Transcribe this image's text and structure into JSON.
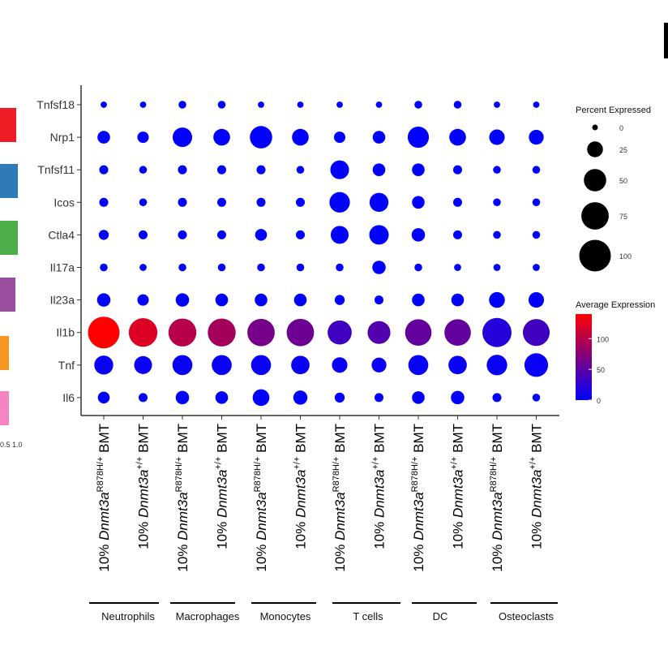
{
  "side_panel": {
    "ticks": "0.5 1.0",
    "bars": [
      {
        "color": "#ee1c25",
        "value": 0.9
      },
      {
        "color": "#2f7bb8",
        "value": 1.0
      },
      {
        "color": "#4caf49",
        "value": 1.0
      },
      {
        "color": "#994f9e",
        "value": 0.85
      },
      {
        "color": "#f5961e",
        "value": 0.5
      },
      {
        "color": "#f683c2",
        "value": 0.5
      }
    ]
  },
  "chart_data": {
    "type": "scatter",
    "genes": [
      "Tnfsf18",
      "Nrp1",
      "Tnfsf11",
      "Icos",
      "Ctla4",
      "Il17a",
      "Il23a",
      "Il1b",
      "Tnf",
      "Il6"
    ],
    "samples": [
      {
        "prefix": "10% ",
        "gene": "Dnmt3a",
        "sup": "R878H/+",
        "suffix": " BMT",
        "group": "Neutrophils"
      },
      {
        "prefix": "10% ",
        "gene": "Dnmt3a",
        "sup": "+/+",
        "suffix": " BMT",
        "group": "Neutrophils"
      },
      {
        "prefix": "10% ",
        "gene": "Dnmt3a",
        "sup": "R878H/+",
        "suffix": " BMT",
        "group": "Macrophages"
      },
      {
        "prefix": "10% ",
        "gene": "Dnmt3a",
        "sup": "+/+",
        "suffix": " BMT",
        "group": "Macrophages"
      },
      {
        "prefix": "10% ",
        "gene": "Dnmt3a",
        "sup": "R878H/+",
        "suffix": " BMT",
        "group": "Monocytes"
      },
      {
        "prefix": "10% ",
        "gene": "Dnmt3a",
        "sup": "+/+",
        "suffix": " BMT",
        "group": "Monocytes"
      },
      {
        "prefix": "10% ",
        "gene": "Dnmt3a",
        "sup": "R878H/+",
        "suffix": " BMT",
        "group": "T cells"
      },
      {
        "prefix": "10% ",
        "gene": "Dnmt3a",
        "sup": "+/+",
        "suffix": " BMT",
        "group": "T cells"
      },
      {
        "prefix": "10% ",
        "gene": "Dnmt3a",
        "sup": "R878H/+",
        "suffix": " BMT",
        "group": "DC"
      },
      {
        "prefix": "10% ",
        "gene": "Dnmt3a",
        "sup": "+/+",
        "suffix": " BMT",
        "group": "DC"
      },
      {
        "prefix": "10% ",
        "gene": "Dnmt3a",
        "sup": "R878H/+",
        "suffix": " BMT",
        "group": "Osteoclasts"
      },
      {
        "prefix": "10% ",
        "gene": "Dnmt3a",
        "sup": "+/+",
        "suffix": " BMT",
        "group": "Osteoclasts"
      }
    ],
    "groups": [
      "Neutrophils",
      "Macrophages",
      "Monocytes",
      "T cells",
      "DC",
      "Osteoclasts"
    ],
    "percent_expressed": [
      [
        4,
        4,
        6,
        6,
        4,
        4,
        4,
        4,
        6,
        6,
        4,
        4
      ],
      [
        16,
        13,
        38,
        28,
        50,
        28,
        13,
        16,
        45,
        28,
        24,
        22
      ],
      [
        8,
        6,
        8,
        8,
        8,
        6,
        35,
        16,
        16,
        8,
        6,
        6
      ],
      [
        8,
        6,
        8,
        8,
        8,
        8,
        42,
        36,
        16,
        8,
        6,
        6
      ],
      [
        10,
        8,
        8,
        8,
        14,
        8,
        32,
        38,
        18,
        8,
        6,
        6
      ],
      [
        6,
        5,
        6,
        6,
        6,
        6,
        6,
        18,
        6,
        5,
        5,
        5
      ],
      [
        18,
        13,
        18,
        16,
        16,
        16,
        10,
        8,
        16,
        16,
        25,
        24
      ],
      [
        100,
        82,
        78,
        78,
        75,
        75,
        58,
        52,
        70,
        70,
        85,
        72
      ],
      [
        36,
        32,
        40,
        40,
        40,
        34,
        24,
        22,
        40,
        34,
        42,
        56
      ],
      [
        14,
        8,
        18,
        16,
        28,
        20,
        10,
        8,
        16,
        18,
        8,
        6
      ]
    ],
    "average_expression": [
      [
        0,
        0,
        0,
        0,
        0,
        0,
        0,
        0,
        0,
        0,
        0,
        0
      ],
      [
        0,
        0,
        0,
        0,
        0,
        0,
        0,
        0,
        0,
        0,
        0,
        0
      ],
      [
        0,
        0,
        0,
        0,
        0,
        0,
        0,
        0,
        0,
        0,
        0,
        0
      ],
      [
        0,
        0,
        0,
        0,
        0,
        0,
        0,
        0,
        0,
        0,
        0,
        0
      ],
      [
        0,
        0,
        0,
        0,
        0,
        0,
        0,
        0,
        0,
        0,
        0,
        0
      ],
      [
        0,
        0,
        0,
        0,
        0,
        0,
        0,
        0,
        0,
        0,
        0,
        0
      ],
      [
        0,
        0,
        0,
        0,
        0,
        0,
        0,
        0,
        0,
        0,
        0,
        0
      ],
      [
        140,
        120,
        100,
        90,
        65,
        60,
        35,
        45,
        55,
        55,
        20,
        35
      ],
      [
        5,
        5,
        5,
        5,
        5,
        5,
        5,
        5,
        5,
        5,
        5,
        5
      ],
      [
        0,
        0,
        0,
        0,
        0,
        0,
        0,
        0,
        0,
        0,
        0,
        0
      ]
    ],
    "size_legend": {
      "title": "Percent Expressed",
      "values": [
        0,
        25,
        50,
        75,
        100
      ]
    },
    "color_legend": {
      "title": "Average Expression",
      "ticks": [
        100,
        50,
        0
      ],
      "range": [
        0,
        140
      ],
      "low_color": "#0000ff",
      "high_color": "#ff0000"
    },
    "size_range": [
      0,
      100
    ]
  }
}
